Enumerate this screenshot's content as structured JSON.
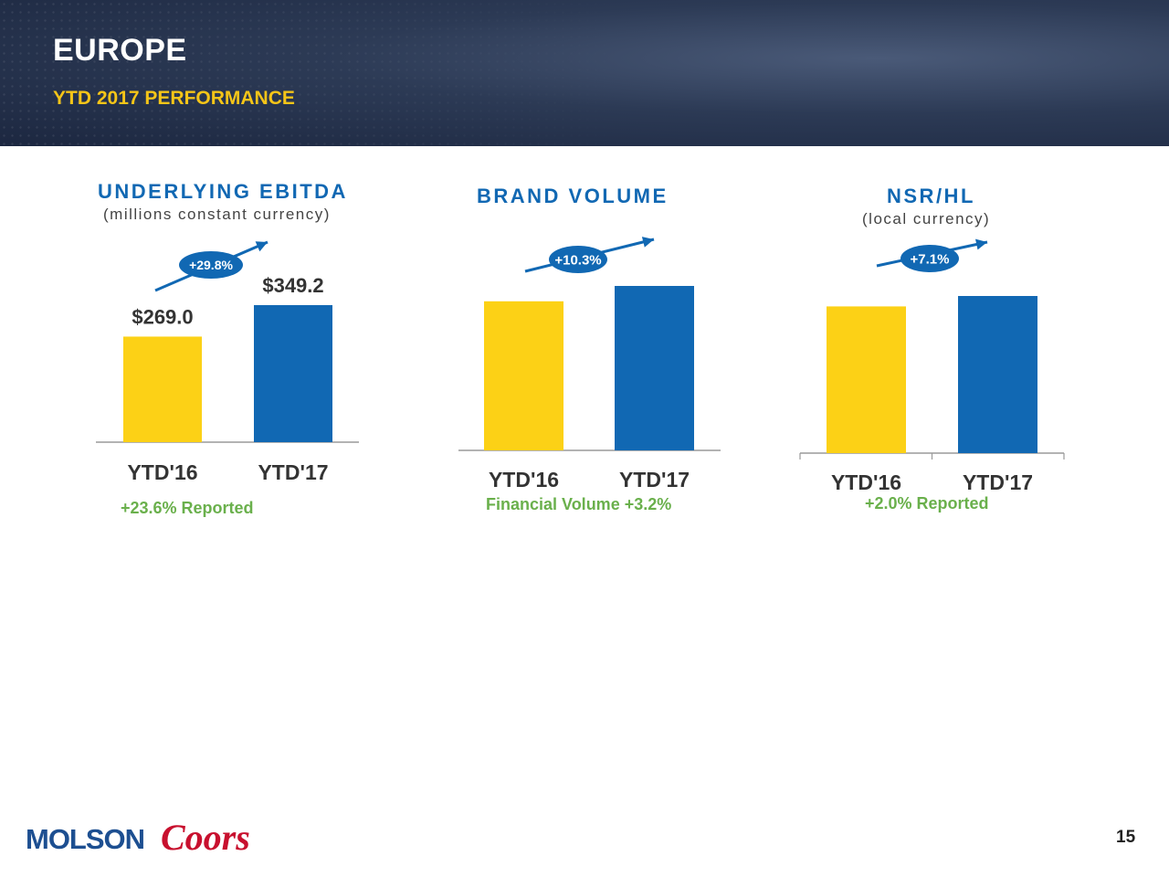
{
  "header": {
    "title": "EUROPE",
    "subtitle": "YTD 2017 PERFORMANCE"
  },
  "colors": {
    "ytd16": "#fcd116",
    "ytd17": "#1168b3",
    "badge": "#1168b3",
    "growth_note": "#6ab04c",
    "axis": "#9a9a9a",
    "tick_text": "#333333"
  },
  "panels": [
    {
      "title": "UNDERLYING EBITDA",
      "subtitle": "(millions constant currency)",
      "badge": "+29.8%",
      "note": "+23.6% Reported"
    },
    {
      "title": "BRAND VOLUME",
      "subtitle": "",
      "badge": "+10.3%",
      "note": "Financial Volume +3.2%"
    },
    {
      "title": "NSR/HL",
      "subtitle": "(local currency)",
      "badge": "+7.1%",
      "note": "+2.0% Reported"
    }
  ],
  "chart_data": [
    {
      "type": "bar",
      "title": "UNDERLYING EBITDA",
      "subtitle": "(millions constant currency)",
      "categories": [
        "YTD'16",
        "YTD'17"
      ],
      "values": [
        269.0,
        349.2
      ],
      "data_labels": [
        "$269.0",
        "$349.2"
      ],
      "ylim": [
        0,
        450
      ],
      "grid": false,
      "growth_badge": "+29.8%",
      "footnote": "+23.6% Reported"
    },
    {
      "type": "bar",
      "title": "BRAND VOLUME",
      "categories": [
        "YTD'16",
        "YTD'17"
      ],
      "values": [
        1.0,
        1.103
      ],
      "data_labels": [],
      "ylim": [
        0,
        1.2
      ],
      "grid": false,
      "growth_badge": "+10.3%",
      "footnote": "Financial Volume +3.2%"
    },
    {
      "type": "bar",
      "title": "NSR/HL",
      "subtitle": "(local currency)",
      "categories": [
        "YTD'16",
        "YTD'17"
      ],
      "values": [
        1.0,
        1.071
      ],
      "data_labels": [],
      "ylim": [
        0,
        1.2
      ],
      "grid": false,
      "growth_badge": "+7.1%",
      "footnote": "+2.0% Reported"
    }
  ],
  "footer": {
    "logo_text": "MOLSON Coors",
    "page_number": "15"
  }
}
